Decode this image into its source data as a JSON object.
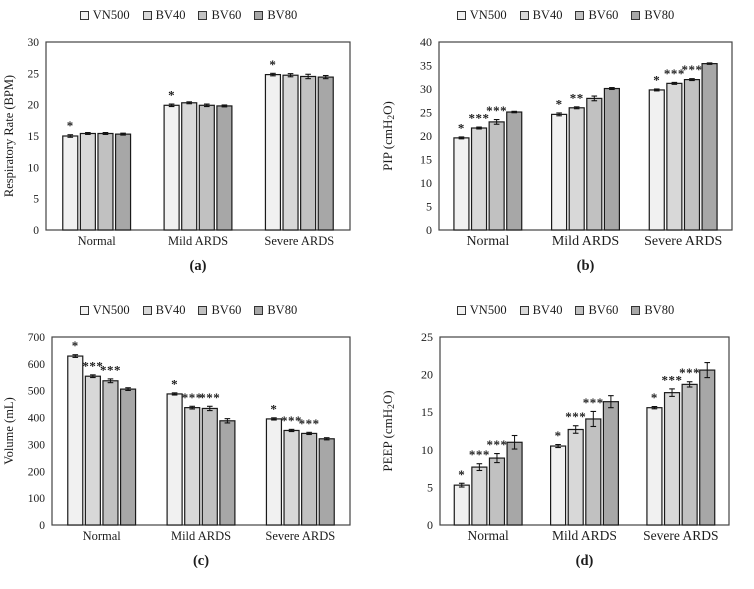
{
  "figure": {
    "series_legend": [
      {
        "name": "VN500",
        "color": "#f1f1f1"
      },
      {
        "name": "BV40",
        "color": "#d8d8d8"
      },
      {
        "name": "BV60",
        "color": "#c1c1c1"
      },
      {
        "name": "BV80",
        "color": "#a7a7a7"
      }
    ],
    "bar_border_color": "#1a1a1a",
    "plot_box_color": "#444444"
  },
  "chart_data": [
    {
      "id": "a",
      "type": "bar",
      "caption": "(a)",
      "title": "",
      "ylabel": "Respiratory Rate (BPM)",
      "xlabel": "",
      "ylim": [
        0,
        30
      ],
      "ytick_step": 5,
      "grid": false,
      "legend_position": "top",
      "categories": [
        "Normal",
        "Mild ARDS",
        "Severe ARDS"
      ],
      "series": [
        {
          "name": "VN500",
          "values": [
            15.0,
            19.9,
            24.8
          ],
          "errors": [
            0.2,
            0.2,
            0.2
          ],
          "sig": [
            "*",
            "*",
            "*"
          ]
        },
        {
          "name": "BV40",
          "values": [
            15.4,
            20.3,
            24.7
          ],
          "errors": [
            0.15,
            0.15,
            0.25
          ],
          "sig": [
            "",
            "",
            ""
          ]
        },
        {
          "name": "BV60",
          "values": [
            15.4,
            19.9,
            24.5
          ],
          "errors": [
            0.15,
            0.2,
            0.35
          ],
          "sig": [
            "",
            "",
            ""
          ]
        },
        {
          "name": "BV80",
          "values": [
            15.3,
            19.8,
            24.4
          ],
          "errors": [
            0.15,
            0.15,
            0.25
          ],
          "sig": [
            "",
            "",
            ""
          ]
        }
      ]
    },
    {
      "id": "b",
      "type": "bar",
      "caption": "(b)",
      "title": "",
      "ylabel": "PIP (cmH₂O)",
      "xlabel": "",
      "ylim": [
        0,
        40
      ],
      "ytick_step": 5,
      "grid": false,
      "legend_position": "top",
      "categories": [
        "Normal",
        "Mild ARDS",
        "Severe ARDS"
      ],
      "series": [
        {
          "name": "VN500",
          "values": [
            19.6,
            24.6,
            29.8
          ],
          "errors": [
            0.2,
            0.3,
            0.2
          ],
          "sig": [
            "*",
            "*",
            "*"
          ]
        },
        {
          "name": "BV40",
          "values": [
            21.7,
            26.0,
            31.2
          ],
          "errors": [
            0.2,
            0.2,
            0.2
          ],
          "sig": [
            "***",
            "**",
            "***"
          ]
        },
        {
          "name": "BV60",
          "values": [
            23.0,
            28.0,
            32.0
          ],
          "errors": [
            0.5,
            0.5,
            0.2
          ],
          "sig": [
            "***",
            "",
            "***"
          ]
        },
        {
          "name": "BV80",
          "values": [
            25.1,
            30.1,
            35.4
          ],
          "errors": [
            0.15,
            0.2,
            0.15
          ],
          "sig": [
            "",
            "",
            ""
          ]
        }
      ]
    },
    {
      "id": "c",
      "type": "bar",
      "caption": "(c)",
      "title": "",
      "ylabel": "Volume (mL)",
      "xlabel": "",
      "ylim": [
        0,
        700
      ],
      "ytick_step": 100,
      "grid": false,
      "legend_position": "top",
      "categories": [
        "Normal",
        "Mild ARDS",
        "Severe ARDS"
      ],
      "series": [
        {
          "name": "VN500",
          "values": [
            629,
            488,
            395
          ],
          "errors": [
            5,
            4,
            4
          ],
          "sig": [
            "*",
            "*",
            "*"
          ]
        },
        {
          "name": "BV40",
          "values": [
            554,
            437,
            352
          ],
          "errors": [
            5,
            5,
            4
          ],
          "sig": [
            "***",
            "***",
            "***"
          ]
        },
        {
          "name": "BV60",
          "values": [
            537,
            434,
            341
          ],
          "errors": [
            7,
            8,
            4
          ],
          "sig": [
            "***",
            "***",
            "***"
          ]
        },
        {
          "name": "BV80",
          "values": [
            506,
            388,
            321
          ],
          "errors": [
            5,
            8,
            4
          ],
          "sig": [
            "",
            "",
            ""
          ]
        }
      ]
    },
    {
      "id": "d",
      "type": "bar",
      "caption": "(d)",
      "title": "",
      "ylabel": "PEEP (cmH₂O)",
      "xlabel": "",
      "ylim": [
        0,
        25
      ],
      "ytick_step": 5,
      "grid": false,
      "legend_position": "top",
      "categories": [
        "Normal",
        "Mild ARDS",
        "Severe ARDS"
      ],
      "series": [
        {
          "name": "VN500",
          "values": [
            5.3,
            10.5,
            15.6
          ],
          "errors": [
            0.25,
            0.2,
            0.15
          ],
          "sig": [
            "*",
            "*",
            "*"
          ]
        },
        {
          "name": "BV40",
          "values": [
            7.7,
            12.7,
            17.6
          ],
          "errors": [
            0.45,
            0.5,
            0.5
          ],
          "sig": [
            "***",
            "***",
            "***"
          ]
        },
        {
          "name": "BV60",
          "values": [
            8.9,
            14.1,
            18.7
          ],
          "errors": [
            0.6,
            1.0,
            0.35
          ],
          "sig": [
            "***",
            "***",
            "***"
          ]
        },
        {
          "name": "BV80",
          "values": [
            11.0,
            16.4,
            20.6
          ],
          "errors": [
            0.9,
            0.8,
            1.0
          ],
          "sig": [
            "",
            "",
            ""
          ]
        }
      ]
    }
  ]
}
